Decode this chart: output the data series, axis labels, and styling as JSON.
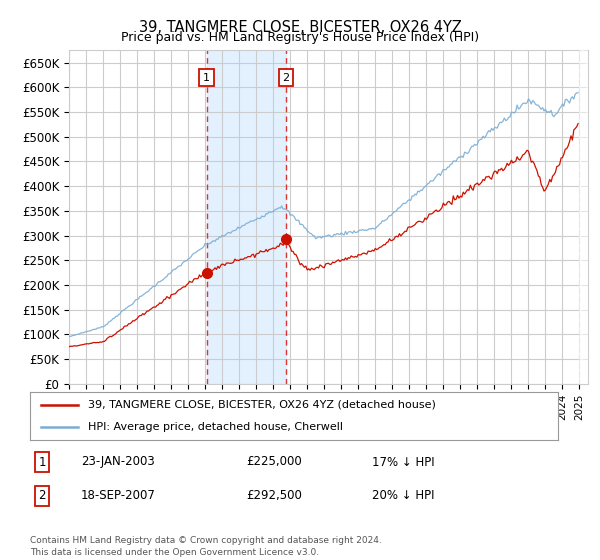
{
  "title": "39, TANGMERE CLOSE, BICESTER, OX26 4YZ",
  "subtitle": "Price paid vs. HM Land Registry's House Price Index (HPI)",
  "ylim": [
    0,
    675000
  ],
  "yticks": [
    0,
    50000,
    100000,
    150000,
    200000,
    250000,
    300000,
    350000,
    400000,
    450000,
    500000,
    550000,
    600000,
    650000
  ],
  "legend_line1": "39, TANGMERE CLOSE, BICESTER, OX26 4YZ (detached house)",
  "legend_line2": "HPI: Average price, detached house, Cherwell",
  "sale1_date": "23-JAN-2003",
  "sale1_price": 225000,
  "sale1_price_str": "£225,000",
  "sale1_label": "17% ↓ HPI",
  "sale2_date": "18-SEP-2007",
  "sale2_price": 292500,
  "sale2_price_str": "£292,500",
  "sale2_label": "20% ↓ HPI",
  "footnote": "Contains HM Land Registry data © Crown copyright and database right 2024.\nThis data is licensed under the Open Government Licence v3.0.",
  "hpi_color": "#7aadd4",
  "price_color": "#cc1100",
  "vline_color": "#dd3333",
  "shade_color": "#ddeeff",
  "grid_color": "#cccccc",
  "bg_color": "#ffffff",
  "sale1_x": 2003.083,
  "sale2_x": 2007.75,
  "xmin": 1995,
  "xmax": 2025.5
}
